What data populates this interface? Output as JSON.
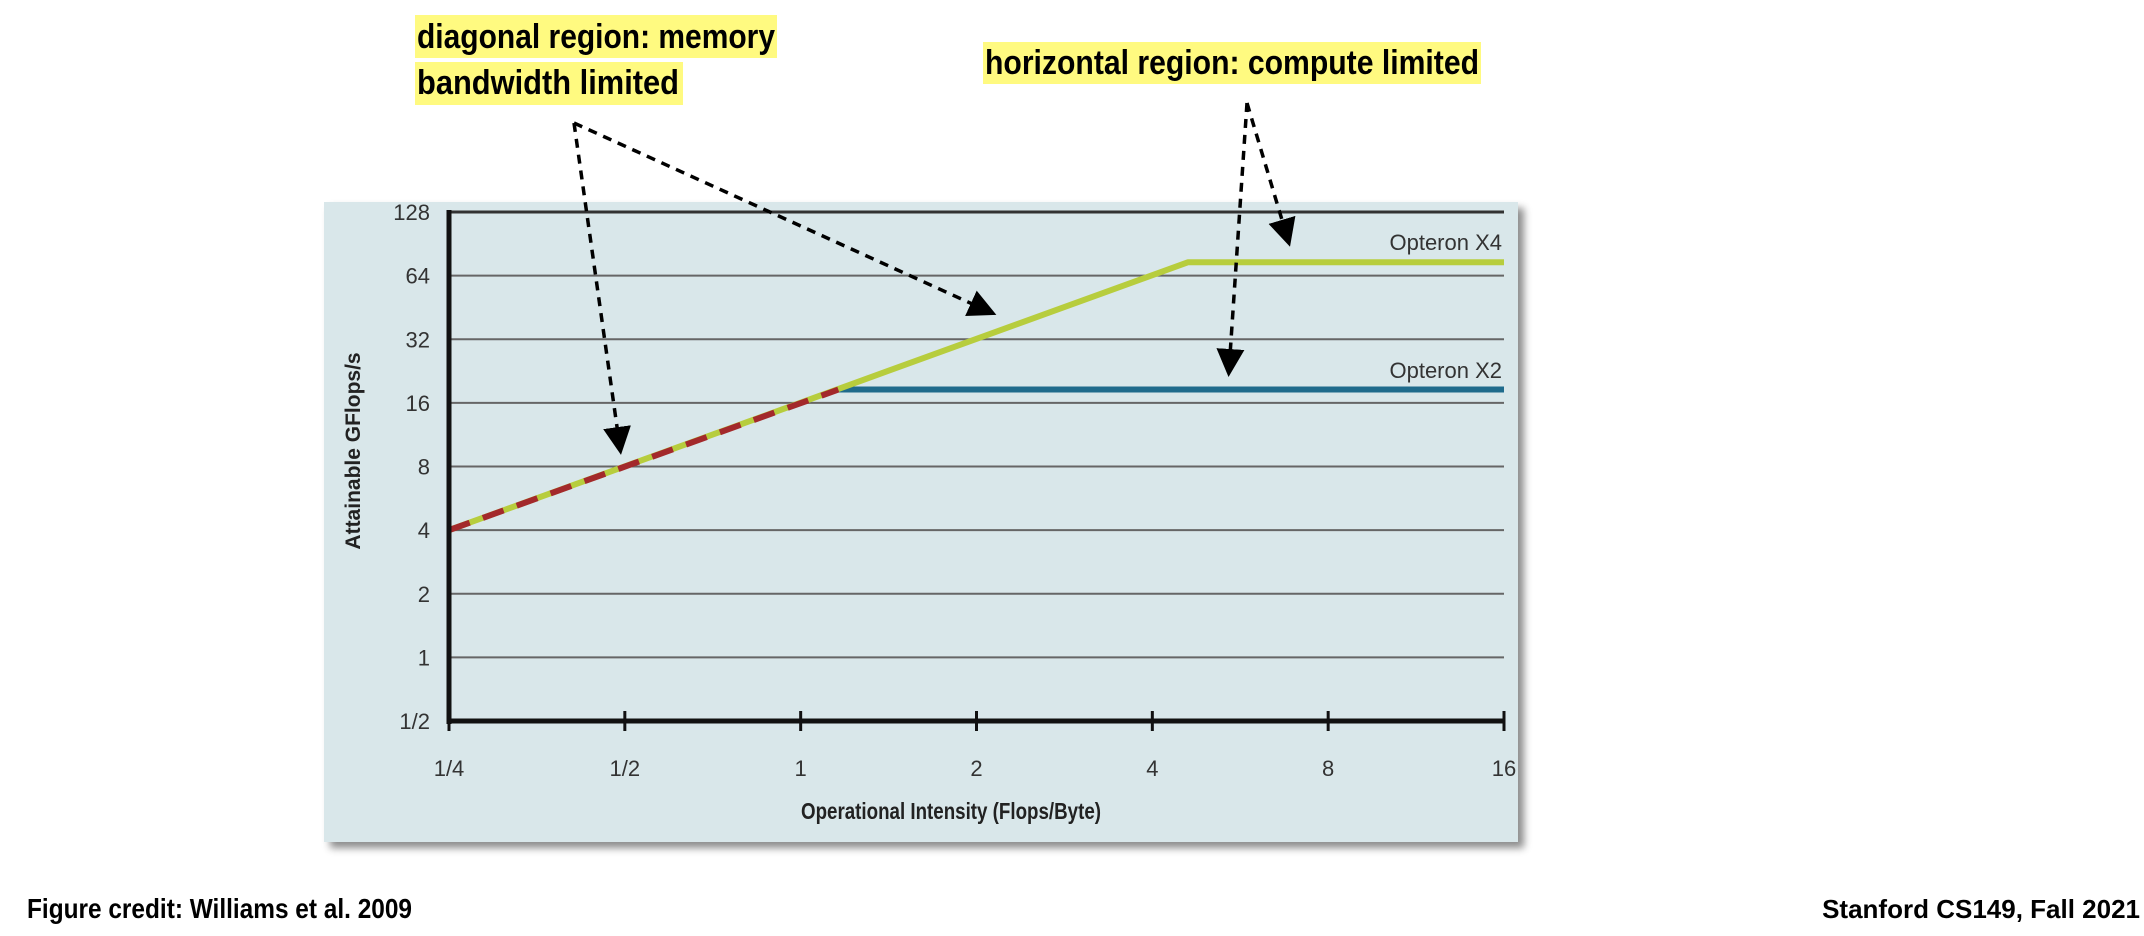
{
  "annotations": {
    "diagonal_line1": "diagonal region: memory",
    "diagonal_line2": "bandwidth limited",
    "horizontal": "horizontal region: compute limited",
    "highlight_color": "#fffa80"
  },
  "footer": {
    "credit": "Figure credit: Williams et al. 2009",
    "course": "Stanford CS149, Fall 2021"
  },
  "chart_data": {
    "type": "line",
    "xlabel": "Operational Intensity (Flops/Byte)",
    "ylabel": "Attainable GFlops/s",
    "x_scale": "log2",
    "y_scale": "log2",
    "xlim": [
      0.25,
      16
    ],
    "ylim": [
      0.5,
      128
    ],
    "x_ticks": [
      0.25,
      0.5,
      1,
      2,
      4,
      8,
      16
    ],
    "x_tick_labels": [
      "1/4",
      "1/2",
      "1",
      "2",
      "4",
      "8",
      "16"
    ],
    "y_ticks": [
      0.5,
      1,
      2,
      4,
      8,
      16,
      32,
      64,
      128
    ],
    "y_tick_labels": [
      "1/2",
      "1",
      "2",
      "4",
      "8",
      "16",
      "32",
      "64",
      "128"
    ],
    "grid": "horizontal",
    "background_color": "#d9e7ea",
    "series": [
      {
        "name": "Opteron X4",
        "color": "#b7cd3d",
        "style": "solid",
        "points": [
          [
            0.25,
            4
          ],
          [
            4.6,
            74
          ],
          [
            16,
            74
          ]
        ]
      },
      {
        "name": "Opteron X2",
        "color": "#1f6b8c",
        "diagonal_color": "#a3292b",
        "style": "solid, dashed diagonal",
        "points": [
          [
            0.25,
            4
          ],
          [
            1.16,
            18.5
          ],
          [
            16,
            18.5
          ]
        ]
      }
    ]
  }
}
